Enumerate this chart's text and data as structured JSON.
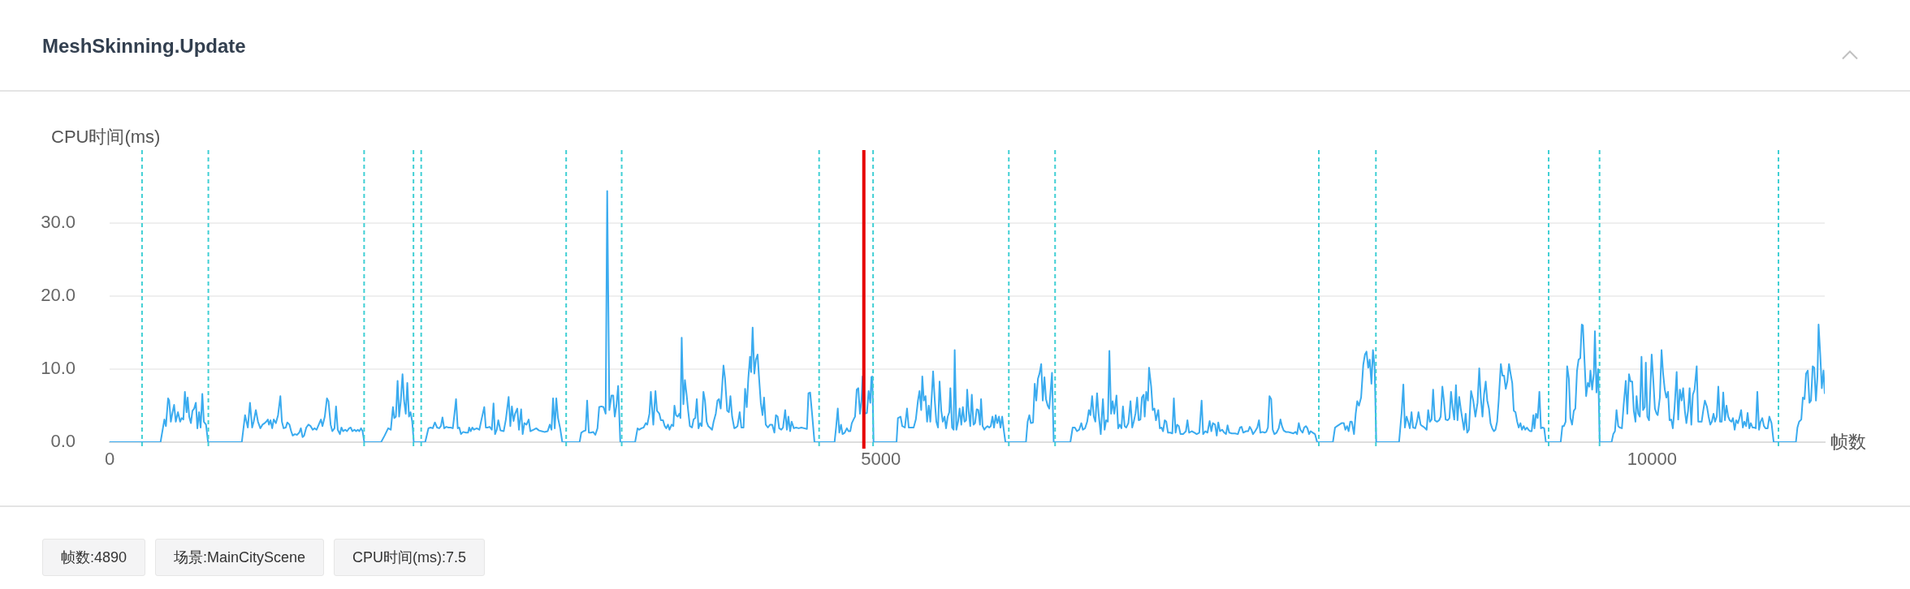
{
  "chart_data": {
    "type": "line",
    "title": "MeshSkinning.Update",
    "xlabel": "帧数",
    "ylabel": "CPU时间(ms)",
    "annotations": [
      "帧数:4890",
      "场景:MainCityScene",
      "CPU时间(ms):7.5"
    ],
    "color": "#3aabef",
    "xlim": [
      0,
      11120
    ],
    "xticks": [
      0,
      5000,
      10000
    ],
    "ylim": [
      0,
      40
    ],
    "yticks": [
      {
        "value": 0,
        "label": "0.0"
      },
      {
        "value": 10,
        "label": "10.0"
      },
      {
        "value": 20,
        "label": "20.0"
      },
      {
        "value": 30,
        "label": "30.0"
      }
    ],
    "grid": "y",
    "ref_lines": [
      {
        "axis": "x",
        "value": 210,
        "color": "#3fcfd4",
        "line_style": "dashed"
      },
      {
        "axis": "x",
        "value": 640,
        "color": "#3fcfd4",
        "line_style": "dashed"
      },
      {
        "axis": "x",
        "value": 1650,
        "color": "#3fcfd4",
        "line_style": "dashed"
      },
      {
        "axis": "x",
        "value": 1970,
        "color": "#3fcfd4",
        "line_style": "dashed"
      },
      {
        "axis": "x",
        "value": 2020,
        "color": "#3fcfd4",
        "line_style": "dashed"
      },
      {
        "axis": "x",
        "value": 2960,
        "color": "#3fcfd4",
        "line_style": "dashed"
      },
      {
        "axis": "x",
        "value": 3320,
        "color": "#3fcfd4",
        "line_style": "dashed"
      },
      {
        "axis": "x",
        "value": 4600,
        "color": "#3fcfd4",
        "line_style": "dashed"
      },
      {
        "axis": "x",
        "value": 4950,
        "color": "#3fcfd4",
        "line_style": "dashed"
      },
      {
        "axis": "x",
        "value": 5830,
        "color": "#3fcfd4",
        "line_style": "dashed"
      },
      {
        "axis": "x",
        "value": 6130,
        "color": "#3fcfd4",
        "line_style": "dashed"
      },
      {
        "axis": "x",
        "value": 7840,
        "color": "#3fcfd4",
        "line_style": "dashed"
      },
      {
        "axis": "x",
        "value": 8210,
        "color": "#3fcfd4",
        "line_style": "dashed"
      },
      {
        "axis": "x",
        "value": 9330,
        "color": "#3fcfd4",
        "line_style": "dashed"
      },
      {
        "axis": "x",
        "value": 9660,
        "color": "#3fcfd4",
        "line_style": "dashed"
      },
      {
        "axis": "x",
        "value": 10820,
        "color": "#3fcfd4",
        "line_style": "dashed"
      },
      {
        "axis": "x",
        "value": 4890,
        "color": "#e60000",
        "line_style": "solid"
      }
    ],
    "x": [
      0,
      330,
      355,
      365,
      379,
      386,
      397,
      408,
      418,
      429,
      443,
      457,
      467,
      478,
      488,
      499,
      506,
      516,
      527,
      537,
      548,
      559,
      569,
      580,
      590,
      601,
      611,
      625,
      638,
      857,
      878,
      896,
      910,
      924,
      934,
      948,
      962,
      977,
      991,
      1005,
      1015,
      1026,
      1033,
      1043,
      1054,
      1064,
      1078,
      1092,
      1107,
      1117,
      1128,
      1142,
      1152,
      1166,
      1177,
      1187,
      1201,
      1215,
      1229,
      1240,
      1251,
      1261,
      1275,
      1289,
      1303,
      1317,
      1328,
      1342,
      1356,
      1370,
      1380,
      1395,
      1409,
      1419,
      1433,
      1444,
      1458,
      1468,
      1479,
      1493,
      1503,
      1514,
      1528,
      1539,
      1553,
      1563,
      1574,
      1588,
      1598,
      1609,
      1619,
      1630,
      1640,
      1651,
      1760,
      1783,
      1806,
      1823,
      1837,
      1846,
      1856,
      1867,
      1877,
      1888,
      1899,
      1909,
      1920,
      1930,
      1941,
      1951,
      1962,
      1972,
      2046,
      2067,
      2081,
      2095,
      2109,
      2123,
      2137,
      2148,
      2158,
      2169,
      2183,
      2197,
      2211,
      2225,
      2236,
      2246,
      2257,
      2267,
      2278,
      2292,
      2310,
      2324,
      2331,
      2341,
      2352,
      2362,
      2380,
      2397,
      2411,
      2429,
      2439,
      2450,
      2464,
      2478,
      2489,
      2499,
      2510,
      2520,
      2534,
      2555,
      2569,
      2587,
      2598,
      2608,
      2619,
      2629,
      2643,
      2654,
      2668,
      2678,
      2689,
      2703,
      2717,
      2728,
      2749,
      2766,
      2784,
      2801,
      2819,
      2840,
      2854,
      2865,
      2875,
      2886,
      2896,
      2907,
      2921,
      2935,
      3047,
      3058,
      3072,
      3086,
      3096,
      3107,
      3121,
      3135,
      3149,
      3163,
      3174,
      3188,
      3202,
      3216,
      3226,
      3240,
      3254,
      3265,
      3275,
      3286,
      3297,
      3311,
      3407,
      3423,
      3434,
      3448,
      3462,
      3476,
      3486,
      3500,
      3509,
      3525,
      3539,
      3549,
      3564,
      3574,
      3588,
      3599,
      3609,
      3620,
      3630,
      3644,
      3655,
      3662,
      3672,
      3683,
      3694,
      3701,
      3709,
      3720,
      3730,
      3741,
      3751,
      3762,
      3776,
      3786,
      3797,
      3807,
      3818,
      3829,
      3839,
      3850,
      3860,
      3871,
      3881,
      3892,
      3906,
      3916,
      3930,
      3941,
      3951,
      3962,
      3980,
      3990,
      4004,
      4015,
      4025,
      4036,
      4050,
      4060,
      4071,
      4085,
      4096,
      4110,
      4120,
      4131,
      4141,
      4152,
      4159,
      4169,
      4180,
      4190,
      4201,
      4211,
      4222,
      4233,
      4243,
      4254,
      4268,
      4282,
      4296,
      4310,
      4320,
      4331,
      4341,
      4355,
      4366,
      4380,
      4391,
      4401,
      4412,
      4422,
      4436,
      4450,
      4468,
      4485,
      4503,
      4521,
      4531,
      4542,
      4556,
      4570,
      4700,
      4710,
      4721,
      4731,
      4742,
      4752,
      4766,
      4780,
      4791,
      4802,
      4812,
      4823,
      4833,
      4844,
      4854,
      4865,
      4875,
      4882,
      4890,
      4896,
      4910,
      4921,
      4932,
      4939,
      4945,
      4953,
      5102,
      5111,
      5128,
      5139,
      5156,
      5170,
      5181,
      5198,
      5213,
      5227,
      5241,
      5251,
      5262,
      5269,
      5279,
      5290,
      5300,
      5311,
      5321,
      5339,
      5350,
      5360,
      5371,
      5381,
      5392,
      5402,
      5413,
      5423,
      5434,
      5444,
      5451,
      5462,
      5472,
      5479,
      5490,
      5501,
      5511,
      5522,
      5532,
      5543,
      5553,
      5560,
      5569,
      5580,
      5590,
      5601,
      5611,
      5622,
      5632,
      5643,
      5650,
      5660,
      5671,
      5681,
      5692,
      5703,
      5713,
      5724,
      5734,
      5745,
      5755,
      5766,
      5776,
      5787,
      5797,
      5808,
      5941,
      5952,
      5963,
      5973,
      5987,
      5998,
      6008,
      6019,
      6029,
      6040,
      6050,
      6061,
      6071,
      6082,
      6092,
      6110,
      6121,
      6229,
      6244,
      6258,
      6272,
      6286,
      6300,
      6310,
      6324,
      6338,
      6349,
      6359,
      6370,
      6381,
      6391,
      6402,
      6412,
      6426,
      6440,
      6451,
      6461,
      6472,
      6482,
      6493,
      6503,
      6514,
      6528,
      6539,
      6549,
      6560,
      6570,
      6581,
      6591,
      6605,
      6619,
      6630,
      6640,
      6651,
      6662,
      6672,
      6683,
      6693,
      6704,
      6711,
      6721,
      6732,
      6739,
      6753,
      6763,
      6774,
      6784,
      6799,
      6809,
      6820,
      6830,
      6841,
      6851,
      6862,
      6876,
      6890,
      6900,
      6911,
      6921,
      6932,
      6943,
      6960,
      6978,
      6988,
      6999,
      7016,
      7034,
      7048,
      7065,
      7080,
      7090,
      7104,
      7118,
      7132,
      7143,
      7153,
      7167,
      7178,
      7188,
      7199,
      7213,
      7227,
      7238,
      7248,
      7259,
      7276,
      7297,
      7315,
      7329,
      7339,
      7350,
      7368,
      7382,
      7392,
      7403,
      7413,
      7427,
      7441,
      7452,
      7461,
      7475,
      7489,
      7499,
      7510,
      7520,
      7531,
      7541,
      7552,
      7566,
      7580,
      7591,
      7601,
      7612,
      7626,
      7640,
      7657,
      7675,
      7689,
      7699,
      7710,
      7720,
      7735,
      7745,
      7756,
      7766,
      7777,
      7787,
      7801,
      7815,
      7829,
      7931,
      7945,
      7959,
      7973,
      7987,
      8002,
      8012,
      8023,
      8033,
      8044,
      8054,
      8068,
      8079,
      8089,
      8100,
      8114,
      8128,
      8139,
      8149,
      8160,
      8170,
      8181,
      8191,
      8202,
      8212,
      8360,
      8377,
      8388,
      8398,
      8409,
      8419,
      8430,
      8441,
      8451,
      8465,
      8476,
      8486,
      8500,
      8511,
      8525,
      8539,
      8549,
      8560,
      8571,
      8581,
      8592,
      8606,
      8620,
      8630,
      8641,
      8651,
      8662,
      8676,
      8687,
      8697,
      8708,
      8718,
      8729,
      8739,
      8750,
      8760,
      8771,
      8781,
      8792,
      8802,
      8813,
      8827,
      8841,
      8855,
      8869,
      8880,
      8890,
      8901,
      8911,
      8922,
      8932,
      8943,
      8953,
      8964,
      8975,
      8985,
      8996,
      9006,
      9020,
      9031,
      9041,
      9052,
      9062,
      9073,
      9083,
      9094,
      9104,
      9115,
      9126,
      9136,
      9147,
      9157,
      9168,
      9178,
      9189,
      9199,
      9210,
      9220,
      9231,
      9238,
      9248,
      9259,
      9270,
      9280,
      9291,
      9301,
      9312,
      9408,
      9419,
      9429,
      9440,
      9450,
      9461,
      9471,
      9482,
      9493,
      9503,
      9514,
      9524,
      9535,
      9545,
      9552,
      9563,
      9573,
      9584,
      9594,
      9601,
      9612,
      9623,
      9630,
      9640,
      9651,
      9661,
      9738,
      9749,
      9760,
      9770,
      9781,
      9791,
      9805,
      9816,
      9830,
      9840,
      9851,
      9861,
      9872,
      9882,
      9893,
      9900,
      9911,
      9921,
      9932,
      9942,
      9953,
      9960,
      9970,
      9981,
      9998,
      10009,
      10019,
      10030,
      10037,
      10051,
      10062,
      10072,
      10083,
      10093,
      10104,
      10114,
      10125,
      10135,
      10146,
      10160,
      10170,
      10181,
      10192,
      10202,
      10213,
      10223,
      10234,
      10244,
      10255,
      10265,
      10276,
      10290,
      10300,
      10311,
      10322,
      10332,
      10343,
      10357,
      10367,
      10378,
      10388,
      10399,
      10409,
      10420,
      10430,
      10441,
      10452,
      10462,
      10473,
      10483,
      10494,
      10504,
      10515,
      10525,
      10536,
      10546,
      10557,
      10567,
      10578,
      10589,
      10599,
      10610,
      10620,
      10631,
      10641,
      10652,
      10662,
      10673,
      10683,
      10694,
      10704,
      10715,
      10726,
      10736,
      10750,
      10761,
      10775,
      10789,
      10933,
      10943,
      10954,
      10968,
      10978,
      10989,
      10999,
      11010,
      11021,
      11031,
      11042,
      11052,
      11063,
      11073,
      11080,
      11091,
      11101,
      11112,
      11120
    ],
    "values": [
      0,
      0,
      3.1,
      2.2,
      6.0,
      5.7,
      2.8,
      4.1,
      5.1,
      2.8,
      4.1,
      2.8,
      3.3,
      3.1,
      6.9,
      4.1,
      6.1,
      3.5,
      2.6,
      4.3,
      4.6,
      5.4,
      1.9,
      4.1,
      2.0,
      6.6,
      2.8,
      2.4,
      0,
      0,
      3.7,
      2.0,
      5.4,
      2.0,
      2.8,
      4.4,
      2.8,
      1.9,
      2.4,
      2.6,
      2.8,
      3.1,
      2.4,
      3.0,
      1.9,
      3.1,
      2.6,
      3.7,
      6.3,
      2.8,
      1.9,
      2.0,
      2.7,
      2.4,
      1.5,
      0.9,
      1.1,
      1.0,
      1.3,
      1.9,
      0.7,
      0.9,
      2.0,
      2.4,
      2.2,
      1.7,
      1.9,
      1.7,
      2.4,
      3.1,
      2.2,
      3.5,
      6.0,
      5.6,
      2.4,
      1.5,
      1.9,
      4.9,
      1.7,
      1.1,
      2.0,
      1.5,
      1.7,
      1.5,
      1.9,
      2.0,
      1.5,
      1.7,
      1.5,
      1.7,
      1.5,
      1.9,
      1.5,
      0,
      0,
      0.9,
      1.9,
      1.7,
      4.8,
      3.3,
      3.5,
      8.4,
      3.5,
      5.7,
      9.3,
      5.7,
      3.9,
      8.1,
      3.5,
      4.1,
      2.8,
      0,
      0,
      1.9,
      2.0,
      1.9,
      2.7,
      2.0,
      1.9,
      2.2,
      3.4,
      1.9,
      2.1,
      2.0,
      2.0,
      1.9,
      3.9,
      5.9,
      1.9,
      2.0,
      1.1,
      1.4,
      1.3,
      1.3,
      2.0,
      1.5,
      2.0,
      1.7,
      1.9,
      1.7,
      3.1,
      4.8,
      2.0,
      2.0,
      2.1,
      1.7,
      5.3,
      1.1,
      1.7,
      3.0,
      1.6,
      1.5,
      3.1,
      6.2,
      2.2,
      4.9,
      2.9,
      3.9,
      4.6,
      1.7,
      4.5,
      1.1,
      2.6,
      2.4,
      3.1,
      1.5,
      1.7,
      1.9,
      1.6,
      1.5,
      1.4,
      1.5,
      2.4,
      1.7,
      6.0,
      1.9,
      6.0,
      3.3,
      1.9,
      0,
      0,
      1.3,
      1.5,
      1.6,
      5.7,
      1.3,
      1.3,
      1.4,
      1.0,
      1.9,
      4.8,
      4.9,
      4.8,
      3.9,
      34.4,
      4.4,
      6.4,
      6.4,
      3.5,
      5.0,
      7.7,
      0,
      0,
      1.9,
      1.7,
      1.9,
      2.0,
      2.6,
      2.4,
      3.9,
      6.9,
      2.4,
      7.0,
      4.3,
      3.9,
      3.0,
      3.0,
      2.2,
      1.9,
      2.4,
      1.7,
      2.4,
      2.2,
      5.0,
      3.7,
      3.5,
      3.9,
      3.3,
      14.3,
      5.2,
      8.5,
      6.5,
      4.3,
      2.2,
      2.0,
      3.1,
      3.3,
      5.9,
      1.9,
      2.6,
      2.2,
      6.9,
      5.7,
      2.8,
      2.2,
      2.0,
      1.7,
      2.8,
      3.9,
      5.7,
      5.9,
      4.6,
      10.5,
      8.7,
      4.3,
      4.1,
      6.3,
      3.5,
      1.9,
      2.0,
      2.2,
      4.1,
      2.0,
      2.0,
      7.3,
      4.8,
      8.7,
      11.7,
      9.6,
      15.7,
      9.4,
      11.3,
      12.0,
      8.7,
      5.4,
      3.7,
      6.1,
      2.4,
      2.0,
      2.4,
      2.4,
      1.3,
      3.7,
      3.5,
      1.9,
      1.7,
      2.0,
      4.4,
      1.7,
      3.5,
      1.5,
      2.8,
      1.9,
      2.0,
      1.9,
      2.0,
      1.9,
      1.8,
      6.7,
      6.8,
      3.5,
      0,
      0,
      2.0,
      4.6,
      1.3,
      2.4,
      1.1,
      1.3,
      1.9,
      1.5,
      1.5,
      2.6,
      3.1,
      3.5,
      7.2,
      7.4,
      3.9,
      5.7,
      9.0,
      7.5,
      3.9,
      4.0,
      7.0,
      5.4,
      8.9,
      9.0,
      0,
      0,
      3.3,
      3.5,
      2.2,
      2.0,
      4.6,
      2.0,
      2.0,
      2.0,
      3.1,
      5.7,
      7.0,
      4.4,
      9.0,
      5.7,
      6.3,
      2.8,
      5.0,
      2.8,
      9.7,
      5.7,
      2.8,
      2.0,
      8.3,
      4.3,
      2.8,
      3.5,
      1.9,
      3.5,
      4.1,
      7.4,
      2.0,
      1.7,
      12.6,
      1.7,
      2.8,
      4.6,
      2.4,
      4.8,
      2.8,
      3.0,
      7.2,
      4.3,
      2.2,
      6.5,
      2.4,
      2.6,
      4.5,
      4.4,
      2.4,
      5.9,
      2.2,
      1.7,
      2.0,
      2.2,
      2.0,
      2.2,
      3.5,
      2.0,
      3.7,
      2.6,
      3.5,
      2.0,
      3.5,
      1.7,
      0,
      0,
      2.8,
      3.7,
      2.6,
      2.7,
      8.0,
      5.7,
      8.7,
      9.4,
      10.7,
      5.7,
      8.9,
      5.9,
      5.0,
      4.6,
      9.5,
      0,
      0,
      2.0,
      2.0,
      1.5,
      1.7,
      2.6,
      1.7,
      1.9,
      2.8,
      4.4,
      3.7,
      6.3,
      3.5,
      2.8,
      6.7,
      3.9,
      1.1,
      5.9,
      1.7,
      3.0,
      2.8,
      12.5,
      3.9,
      5.6,
      3.9,
      6.4,
      1.9,
      2.4,
      1.9,
      4.9,
      2.2,
      2.0,
      2.6,
      5.6,
      2.0,
      2.8,
      3.9,
      6.1,
      3.0,
      3.1,
      6.1,
      6.5,
      3.5,
      6.9,
      5.7,
      10.2,
      7.6,
      4.4,
      4.6,
      3.0,
      4.4,
      1.9,
      2.0,
      1.5,
      3.0,
      2.8,
      1.3,
      1.3,
      1.2,
      6.0,
      1.3,
      2.4,
      2.2,
      1.1,
      1.1,
      1.5,
      3.0,
      1.3,
      1.5,
      1.3,
      1.1,
      1.3,
      5.7,
      1.1,
      1.5,
      1.3,
      2.9,
      1.5,
      2.6,
      2.4,
      0.9,
      2.7,
      1.5,
      1.7,
      1.3,
      1.1,
      2.3,
      1.3,
      1.2,
      1.2,
      1.1,
      2.0,
      2.1,
      1.3,
      1.5,
      1.5,
      2.1,
      1.7,
      1.1,
      1.5,
      2.0,
      3.0,
      1.3,
      1.4,
      1.3,
      1.4,
      2.0,
      6.3,
      5.9,
      1.7,
      1.1,
      1.3,
      1.9,
      3.1,
      2.2,
      1.6,
      1.4,
      1.4,
      1.3,
      1.2,
      1.4,
      1.1,
      2.6,
      1.7,
      1.3,
      2.0,
      2.2,
      1.9,
      1.1,
      1.5,
      1.3,
      1.1,
      0,
      0,
      2.0,
      2.2,
      2.4,
      2.6,
      2.6,
      1.7,
      2.2,
      1.5,
      2.8,
      2.8,
      1.1,
      3.9,
      5.6,
      5.0,
      6.1,
      10.6,
      12.0,
      12.4,
      10.2,
      11.3,
      8.0,
      12.6,
      10.2,
      0,
      0,
      4.1,
      7.9,
      2.0,
      3.5,
      2.8,
      1.9,
      4.1,
      2.0,
      1.9,
      2.8,
      4.1,
      2.4,
      2.2,
      2.0,
      1.7,
      4.4,
      2.8,
      3.1,
      7.2,
      3.0,
      2.8,
      3.0,
      3.5,
      7.6,
      5.7,
      3.1,
      3.0,
      3.3,
      6.9,
      4.6,
      3.1,
      7.8,
      3.0,
      6.2,
      4.6,
      3.1,
      1.7,
      3.9,
      1.3,
      1.7,
      7.0,
      5.7,
      3.5,
      5.4,
      10.1,
      6.1,
      3.5,
      6.5,
      8.3,
      5.7,
      4.6,
      2.6,
      1.9,
      1.5,
      1.7,
      2.8,
      5.7,
      10.7,
      9.1,
      9.1,
      7.3,
      8.3,
      10.7,
      9.4,
      8.1,
      4.3,
      4.1,
      2.8,
      2.0,
      2.6,
      1.7,
      2.2,
      1.7,
      2.0,
      1.7,
      1.5,
      1.5,
      3.7,
      1.9,
      3.9,
      3.3,
      6.9,
      1.9,
      2.0,
      1.9,
      0,
      0,
      2.2,
      2.2,
      2.8,
      10.4,
      8.7,
      3.3,
      2.4,
      4.3,
      4.6,
      9.8,
      11.3,
      11.5,
      16.1,
      16.0,
      10.9,
      6.3,
      8.1,
      7.6,
      9.8,
      7.2,
      9.4,
      15.2,
      6.8,
      10.0,
      0,
      0,
      1.1,
      1.5,
      4.4,
      2.2,
      2.0,
      1.9,
      5.0,
      8.4,
      3.9,
      9.3,
      8.3,
      8.3,
      4.3,
      2.8,
      6.3,
      3.9,
      3.5,
      11.7,
      4.4,
      4.8,
      10.9,
      3.5,
      3.0,
      12.0,
      8.3,
      4.6,
      3.9,
      3.7,
      6.1,
      12.6,
      9.4,
      7.2,
      6.1,
      6.9,
      3.0,
      3.1,
      1.9,
      4.6,
      9.6,
      3.1,
      7.2,
      5.7,
      7.4,
      4.3,
      2.6,
      4.3,
      7.4,
      2.4,
      6.5,
      7.2,
      10.4,
      2.8,
      2.8,
      2.8,
      4.3,
      5.7,
      4.8,
      3.5,
      2.4,
      2.8,
      3.9,
      2.8,
      3.5,
      7.6,
      2.8,
      2.8,
      6.8,
      3.0,
      5.0,
      3.5,
      3.0,
      2.8,
      3.3,
      1.7,
      3.0,
      2.6,
      3.3,
      4.4,
      2.0,
      2.8,
      2.2,
      4.0,
      1.9,
      2.6,
      2.0,
      2.0,
      1.9,
      6.9,
      1.7,
      2.8,
      3.3,
      2.2,
      1.9,
      1.9,
      3.5,
      2.6,
      0,
      0,
      2.0,
      2.8,
      3.1,
      6.1,
      5.9,
      9.4,
      9.8,
      5.4,
      5.7,
      10.4,
      10.2,
      5.7,
      9.1,
      16.1,
      12.0,
      7.4,
      9.8,
      6.7
    ]
  }
}
